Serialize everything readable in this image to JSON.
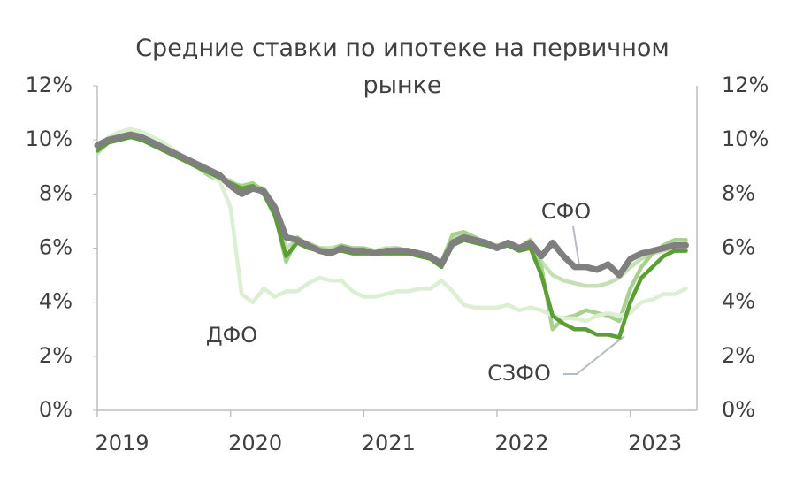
{
  "chart_data": {
    "type": "line",
    "title": "Средние ставки по ипотеке на первичном рынке",
    "x": [
      2019,
      2019.083,
      2019.167,
      2019.25,
      2019.333,
      2019.417,
      2019.5,
      2019.583,
      2019.667,
      2019.75,
      2019.833,
      2019.917,
      2020,
      2020.083,
      2020.167,
      2020.25,
      2020.333,
      2020.417,
      2020.5,
      2020.583,
      2020.667,
      2020.75,
      2020.833,
      2020.917,
      2021,
      2021.083,
      2021.167,
      2021.25,
      2021.333,
      2021.417,
      2021.5,
      2021.583,
      2021.667,
      2021.75,
      2021.833,
      2021.917,
      2022,
      2022.083,
      2022.167,
      2022.25,
      2022.333,
      2022.417,
      2022.5,
      2022.583,
      2022.667,
      2022.75,
      2022.833,
      2022.917,
      2023,
      2023.083,
      2023.167,
      2023.25,
      2023.333,
      2023.417
    ],
    "series": [
      {
        "color": "#c5e0b4",
        "values": [
          9.5,
          9.9,
          10.1,
          10.2,
          10.1,
          9.9,
          9.7,
          9.5,
          9.2,
          9.0,
          8.8,
          8.6,
          8.5,
          8.2,
          8.3,
          8.2,
          7.6,
          6.0,
          6.3,
          6.2,
          6.0,
          6.0,
          6.1,
          6.0,
          5.9,
          5.9,
          6.0,
          6.0,
          5.9,
          5.8,
          5.7,
          5.5,
          6.4,
          6.5,
          6.3,
          6.1,
          6.0,
          6.1,
          5.9,
          6.1,
          5.5,
          5.0,
          4.8,
          4.7,
          4.6,
          4.6,
          4.7,
          4.9,
          5.3,
          5.6,
          5.8,
          5.9,
          6.0,
          6.2
        ]
      },
      {
        "color": "#a9d18e",
        "values": [
          9.7,
          10.0,
          10.2,
          10.3,
          10.2,
          10.0,
          9.8,
          9.5,
          9.2,
          9.0,
          8.7,
          8.5,
          8.4,
          8.3,
          8.4,
          8.1,
          7.3,
          5.5,
          6.4,
          6.1,
          6.0,
          5.9,
          6.1,
          6.0,
          6.0,
          5.9,
          5.9,
          6.0,
          5.9,
          5.8,
          5.7,
          5.5,
          6.5,
          6.6,
          6.4,
          6.2,
          6.1,
          6.2,
          6.0,
          6.3,
          5.3,
          3.0,
          3.4,
          3.5,
          3.7,
          3.6,
          3.5,
          3.3,
          4.5,
          5.3,
          5.8,
          6.1,
          6.3,
          6.3
        ]
      },
      {
        "name": "ДФО",
        "color": "#dcefd3",
        "values": [
          9.7,
          10.1,
          10.3,
          10.4,
          10.3,
          10.1,
          9.9,
          9.6,
          9.3,
          9.1,
          8.8,
          8.5,
          7.5,
          4.3,
          4.0,
          4.5,
          4.2,
          4.4,
          4.4,
          4.7,
          4.9,
          4.8,
          4.8,
          4.4,
          4.2,
          4.2,
          4.3,
          4.4,
          4.4,
          4.5,
          4.5,
          4.8,
          4.4,
          3.9,
          3.8,
          3.8,
          3.8,
          3.9,
          3.7,
          3.8,
          3.7,
          3.5,
          3.4,
          3.4,
          3.3,
          3.5,
          3.6,
          3.5,
          3.6,
          4.0,
          4.1,
          4.3,
          4.3,
          4.5
        ]
      },
      {
        "name": "СЗФО",
        "color": "#5a9e35",
        "values": [
          9.6,
          9.9,
          10.0,
          10.1,
          10.0,
          9.8,
          9.6,
          9.4,
          9.2,
          9.0,
          8.8,
          8.6,
          8.4,
          8.2,
          8.3,
          8.0,
          7.2,
          5.7,
          6.2,
          6.0,
          5.9,
          5.9,
          5.9,
          5.8,
          5.8,
          5.8,
          5.8,
          5.8,
          5.8,
          5.7,
          5.6,
          5.3,
          6.1,
          6.3,
          6.2,
          6.1,
          6.0,
          6.1,
          5.9,
          6.0,
          5.0,
          3.5,
          3.2,
          3.0,
          3.0,
          2.8,
          2.8,
          2.7,
          4.0,
          4.9,
          5.3,
          5.7,
          5.9,
          5.9
        ]
      },
      {
        "name": "СФО",
        "color": "#7f7f7f",
        "values": [
          9.8,
          10.0,
          10.1,
          10.2,
          10.1,
          9.9,
          9.7,
          9.5,
          9.3,
          9.1,
          8.9,
          8.7,
          8.3,
          8.0,
          8.2,
          8.1,
          7.5,
          6.4,
          6.3,
          6.1,
          5.9,
          5.8,
          6.0,
          5.9,
          5.9,
          5.8,
          5.9,
          5.9,
          5.9,
          5.8,
          5.7,
          5.4,
          6.2,
          6.4,
          6.3,
          6.2,
          6.0,
          6.2,
          6.0,
          6.2,
          5.7,
          6.2,
          5.7,
          5.3,
          5.3,
          5.2,
          5.4,
          5.0,
          5.6,
          5.8,
          5.9,
          6.0,
          6.1,
          6.1
        ]
      }
    ],
    "xlim": [
      2019,
      2023.5
    ],
    "xticks": [
      2019,
      2020,
      2021,
      2022,
      2023
    ],
    "ylim": [
      0,
      12
    ],
    "yticks": [
      {
        "value": 0,
        "label": "0%"
      },
      {
        "value": 2,
        "label": "2%"
      },
      {
        "value": 4,
        "label": "4%"
      },
      {
        "value": 6,
        "label": "6%"
      },
      {
        "value": 8,
        "label": "8%"
      },
      {
        "value": 10,
        "label": "10%"
      },
      {
        "value": 12,
        "label": "12%"
      }
    ],
    "grid": false
  }
}
